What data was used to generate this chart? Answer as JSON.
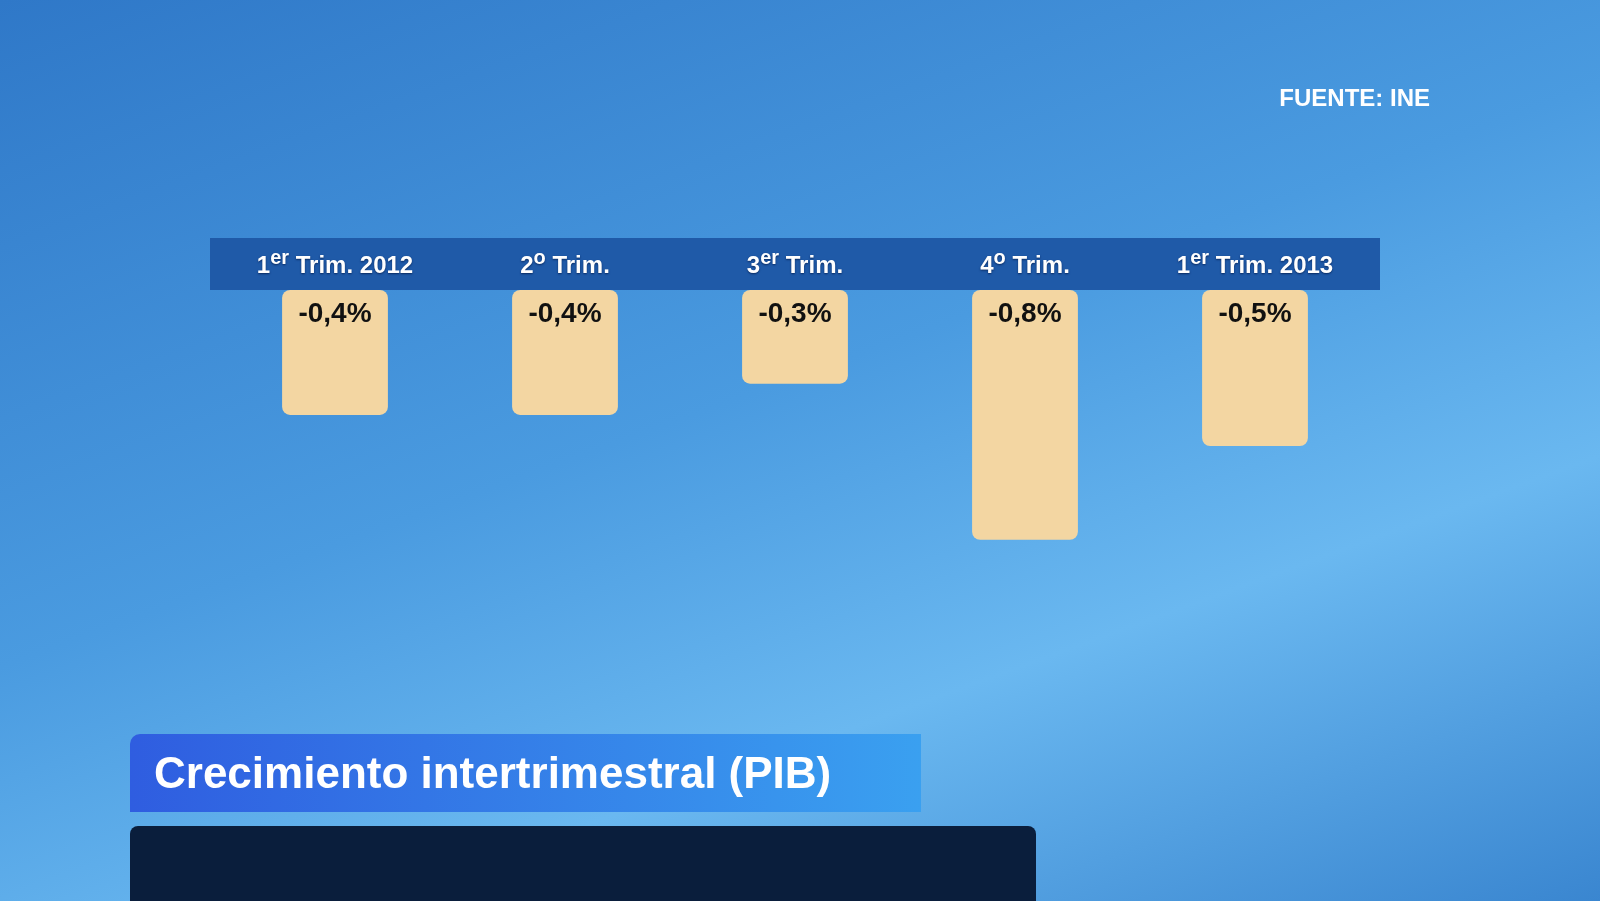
{
  "chart_data": {
    "type": "bar",
    "title": "Crecimiento intertrimestral (PIB)",
    "annotations": [
      "FUENTE: INE"
    ],
    "categories": [
      "1$^{er}$ Trim. 2012",
      "2$^{o}$ Trim.",
      "3$^{er}$ Trim.",
      "4$^{o}$ Trim.",
      "1$^{er}$ Trim. 2013"
    ],
    "values": [
      -0.4,
      -0.4,
      -0.3,
      -0.8,
      -0.5
    ],
    "value_labels": [
      "-0,4%",
      "-0,4%",
      "-0,3%",
      "-0,8%",
      "-0,5%"
    ],
    "color": "#f3d6a2",
    "legend": false
  }
}
